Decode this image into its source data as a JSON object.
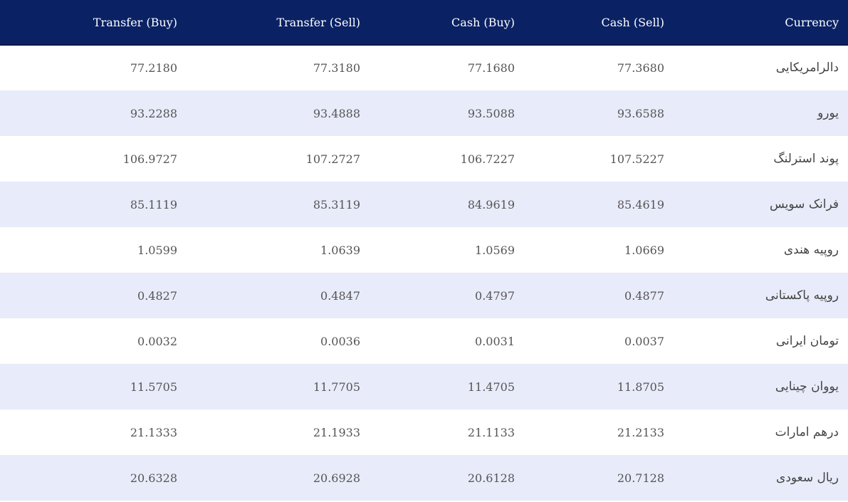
{
  "table": {
    "headers": {
      "transfer_buy": "Transfer (Buy)",
      "transfer_sell": "Transfer (Sell)",
      "cash_buy": "Cash (Buy)",
      "cash_sell": "Cash (Sell)",
      "currency": "Currency"
    },
    "rows": [
      {
        "transfer_buy": "77.2180",
        "transfer_sell": "77.3180",
        "cash_buy": "77.1680",
        "cash_sell": "77.3680",
        "currency": "دالرامریکایی"
      },
      {
        "transfer_buy": "93.2288",
        "transfer_sell": "93.4888",
        "cash_buy": "93.5088",
        "cash_sell": "93.6588",
        "currency": "یورو"
      },
      {
        "transfer_buy": "106.9727",
        "transfer_sell": "107.2727",
        "cash_buy": "106.7227",
        "cash_sell": "107.5227",
        "currency": "پوند استرلنگ"
      },
      {
        "transfer_buy": "85.1119",
        "transfer_sell": "85.3119",
        "cash_buy": "84.9619",
        "cash_sell": "85.4619",
        "currency": "فرانک سویس"
      },
      {
        "transfer_buy": "1.0599",
        "transfer_sell": "1.0639",
        "cash_buy": "1.0569",
        "cash_sell": "1.0669",
        "currency": "روپیه هندی"
      },
      {
        "transfer_buy": "0.4827",
        "transfer_sell": "0.4847",
        "cash_buy": "0.4797",
        "cash_sell": "0.4877",
        "currency": "روپیه پاکستانی"
      },
      {
        "transfer_buy": "0.0032",
        "transfer_sell": "0.0036",
        "cash_buy": "0.0031",
        "cash_sell": "0.0037",
        "currency": "تومان ایرانی"
      },
      {
        "transfer_buy": "11.5705",
        "transfer_sell": "11.7705",
        "cash_buy": "11.4705",
        "cash_sell": "11.8705",
        "currency": "یووان چینایی"
      },
      {
        "transfer_buy": "21.1333",
        "transfer_sell": "21.1933",
        "cash_buy": "21.1133",
        "cash_sell": "21.2133",
        "currency": "درهم امارات"
      },
      {
        "transfer_buy": "20.6328",
        "transfer_sell": "20.6928",
        "cash_buy": "20.6128",
        "cash_sell": "20.7128",
        "currency": "ریال سعودی"
      }
    ]
  },
  "colors": {
    "header_bg": "#0a2264",
    "row_alt_bg": "#e8ebf9"
  }
}
